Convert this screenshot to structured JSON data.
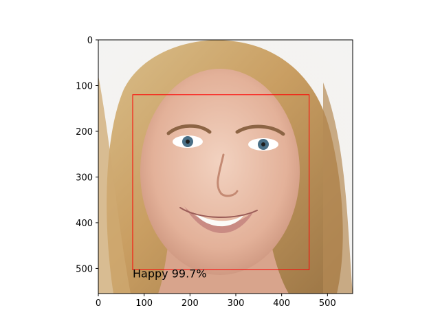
{
  "chart_data": {
    "type": "scatter",
    "kind": "image-with-annotation",
    "title": "",
    "xlabel": "",
    "ylabel": "",
    "xlim": [
      0,
      555
    ],
    "ylim": [
      555,
      0
    ],
    "y_inverted": true,
    "grid": false,
    "legend": "none",
    "x_ticks": [
      0,
      100,
      200,
      300,
      400,
      500
    ],
    "y_ticks": [
      0,
      100,
      200,
      300,
      400,
      500
    ],
    "image_subject": "smiling woman portrait",
    "bounding_box": {
      "x_min": 75,
      "y_min": 120,
      "x_max": 460,
      "y_max": 503,
      "color": "#ff0000"
    },
    "annotation": {
      "text": "Happy 99.7%",
      "x": 75,
      "y": 520,
      "color": "#000000"
    }
  }
}
